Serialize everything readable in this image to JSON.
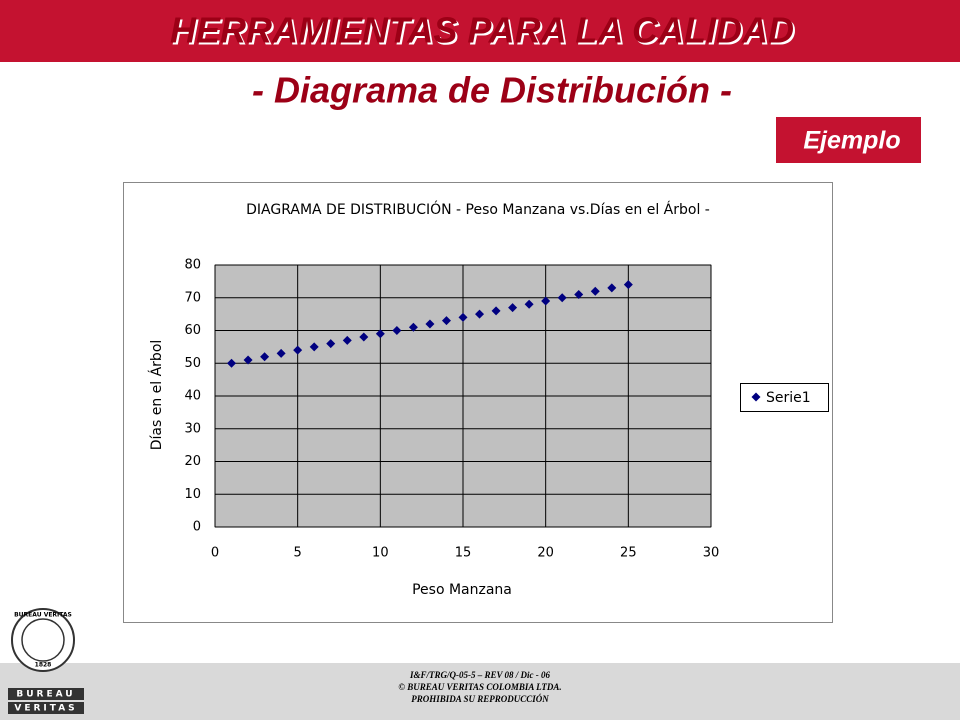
{
  "slide": {
    "title": "HERRAMIENTAS PARA LA CALIDAD",
    "subtitle": "- Diagrama de Distribución -",
    "tag": "Ejemplo",
    "footer": [
      "I&F/TRG/Q-05-5 – REV 08 / Dic - 06",
      "© BUREAU VERITAS COLOMBIA LTDA.",
      "PROHIBIDA SU REPRODUCCIÓN"
    ],
    "logo": {
      "ring": "BUREAU VERITAS",
      "year": "1828",
      "words": [
        "BUREAU",
        "VERITAS"
      ]
    }
  },
  "chart_data": {
    "type": "scatter",
    "title": "DIAGRAMA DE DISTRIBUCIÓN - Peso Manzana vs.Días en el Árbol -",
    "x_label": "Peso Manzana",
    "y_label": "Días en el Árbol",
    "x": [
      1,
      2,
      3,
      4,
      5,
      6,
      7,
      8,
      9,
      10,
      11,
      12,
      13,
      14,
      15,
      16,
      17,
      18,
      19,
      20,
      21,
      22,
      23,
      24,
      25
    ],
    "series": [
      {
        "name": "Serie1",
        "color": "#000080",
        "values": [
          50,
          51,
          52,
          53,
          54,
          55,
          56,
          57,
          58,
          59,
          60,
          61,
          62,
          63,
          64,
          65,
          66,
          67,
          68,
          69,
          70,
          71,
          72,
          73,
          74
        ]
      }
    ],
    "xlim": [
      0,
      30
    ],
    "xticks": [
      0,
      5,
      10,
      15,
      20,
      25,
      30
    ],
    "ylim": [
      0,
      80
    ],
    "yticks": [
      0,
      10,
      20,
      30,
      40,
      50,
      60,
      70,
      80
    ],
    "grid": true,
    "legend": "right"
  }
}
